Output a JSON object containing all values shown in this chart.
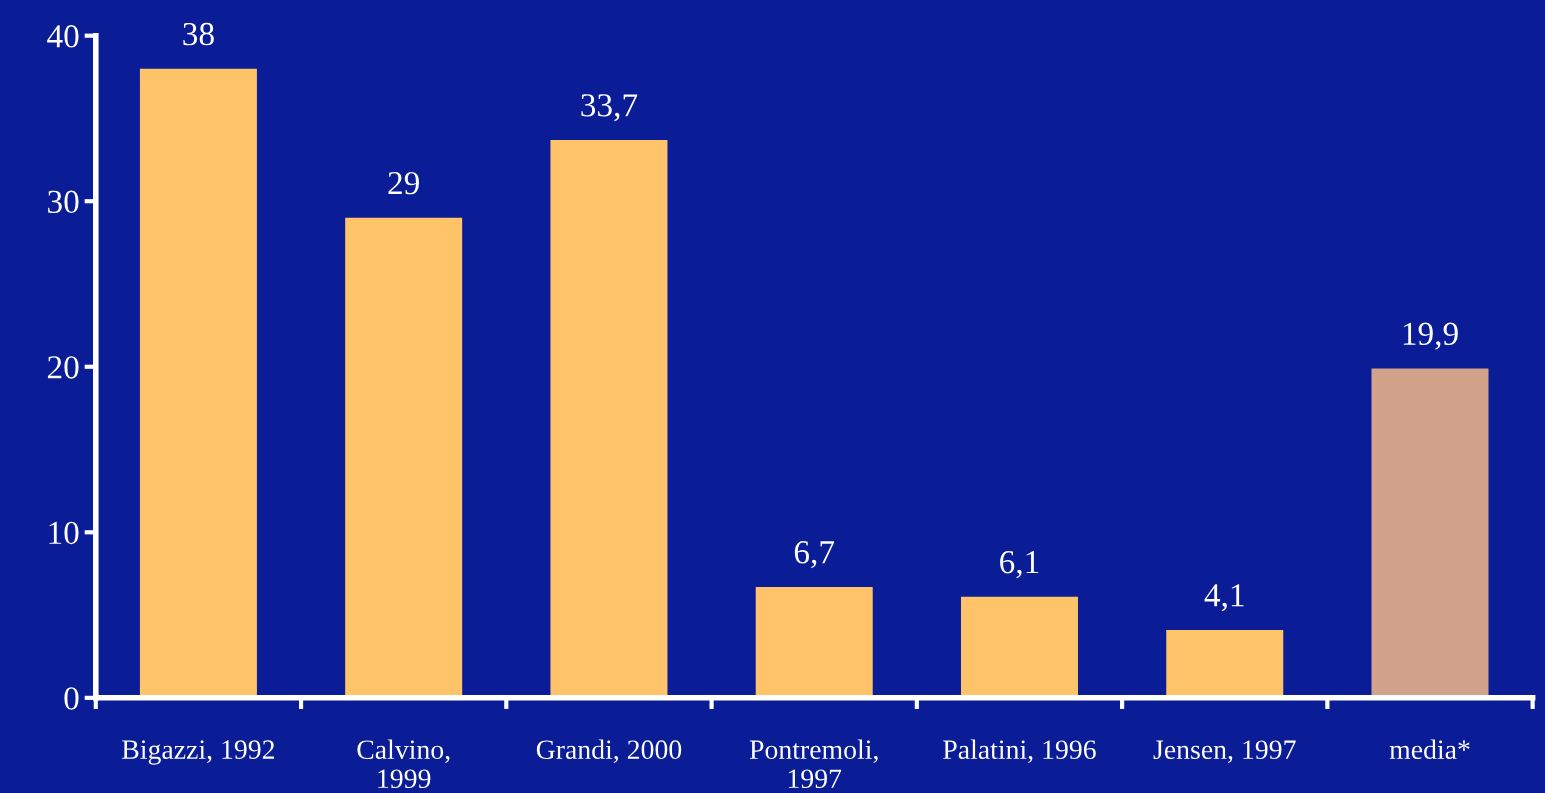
{
  "chart_data": {
    "type": "bar",
    "categories": [
      "Bigazzi, 1992",
      "Calvino,\n1999",
      "Grandi, 2000",
      "Pontremoli,\n1997",
      "Palatini, 1996",
      "Jensen, 1997",
      "media*"
    ],
    "values": [
      38,
      29,
      33.7,
      6.7,
      6.1,
      4.1,
      19.9
    ],
    "value_labels": [
      "38",
      "29",
      "33,7",
      "6,7",
      "6,1",
      "4,1",
      "19,9"
    ],
    "colors": [
      "#ffc46a",
      "#ffc46a",
      "#ffc46a",
      "#ffc46a",
      "#ffc46a",
      "#ffc46a",
      "#d2a28a"
    ],
    "ylim": [
      0,
      40
    ],
    "yticks": [
      0,
      10,
      20,
      30,
      40
    ],
    "grid": false
  }
}
